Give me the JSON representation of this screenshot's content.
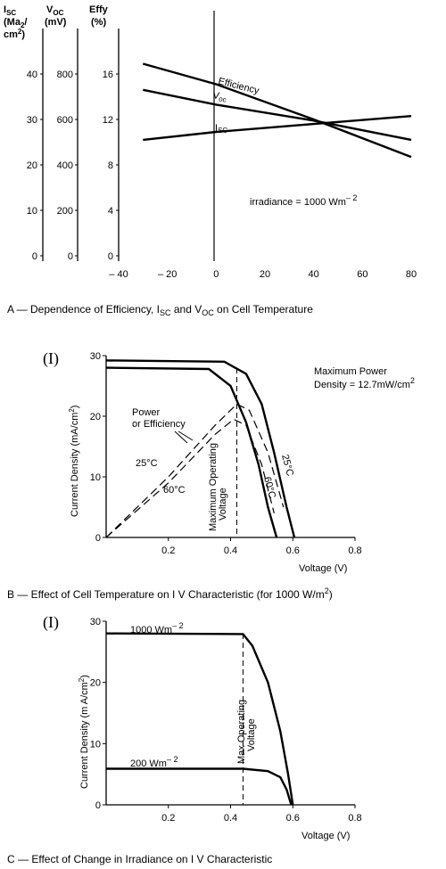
{
  "chart_data": [
    {
      "type": "line",
      "caption": "A — Dependence of Efficiency, I",
      "caption_sub1": "SC",
      "caption_mid": " and V",
      "caption_sub2": "OC",
      "caption_end": " on Cell Temperature",
      "axes_headers": {
        "isc": {
          "main": "I",
          "sub": "SC",
          "l2": "(Ma",
          "l2sub": "2",
          "l2end": "/",
          "l3": "cm",
          "l3sup": "2",
          "l3end": ")"
        },
        "voc": {
          "main": "V",
          "sub": "OC",
          "l2": "(mV)"
        },
        "effy": {
          "main": "Effy",
          "l2": "(%)"
        }
      },
      "isc_ticks": [
        "0",
        "10",
        "20",
        "30",
        "40"
      ],
      "voc_ticks": [
        "0",
        "200",
        "400",
        "600",
        "800"
      ],
      "effy_ticks": [
        "0",
        "4",
        "8",
        "12",
        "16"
      ],
      "x_ticks": [
        "– 40",
        "– 20",
        "0",
        "20",
        "40",
        "60",
        "80"
      ],
      "x_tick_values": [
        -40,
        -20,
        0,
        20,
        40,
        60,
        80
      ],
      "xlim": [
        -40,
        80
      ],
      "ylim_effy": [
        0,
        20
      ],
      "annotation": "irradiance = 1000 Wm",
      "annotation_sup": "– 2",
      "series": [
        {
          "name": "Efficiency",
          "x": [
            -30,
            0,
            40,
            80
          ],
          "y_effy": [
            16.9,
            15.1,
            12.0,
            8.7
          ]
        },
        {
          "name": "V",
          "name_sub": "oc",
          "x": [
            -30,
            0,
            40,
            80
          ],
          "y_effy": [
            14.6,
            13.3,
            11.9,
            10.2
          ]
        },
        {
          "name": "I",
          "name_sub": "SC",
          "x": [
            -30,
            0,
            40,
            80
          ],
          "y_effy": [
            10.2,
            10.9,
            11.6,
            12.3
          ]
        }
      ]
    },
    {
      "type": "line",
      "panel_label": "(I)",
      "caption": "B — Effect of Cell Temperature on I V Characteristic (for 1000 W/m",
      "caption_sup": "2",
      "caption_end": ")",
      "ylabel": "Current Density (mA/cm",
      "ylabel_sup": "2",
      "ylabel_end": ")",
      "xlabel": "Voltage (V)",
      "x_ticks": [
        "0.2",
        "0.4",
        "0.6",
        "0.8"
      ],
      "x_tick_values": [
        0.2,
        0.4,
        0.6,
        0.8
      ],
      "y_ticks": [
        "0",
        "10",
        "20",
        "30"
      ],
      "y_tick_values": [
        0,
        10,
        20,
        30
      ],
      "xlim": [
        0,
        0.8
      ],
      "ylim": [
        0,
        30
      ],
      "note_line1": "Maximum Power",
      "note_line2": "Density = 12.7mW/cm",
      "note_sup": "2",
      "power_label_1": "Power",
      "power_label_2": "or Efficiency",
      "vertical_label_1": "Maximum Operating",
      "vertical_label_2": "Voltage",
      "max_operating_voltage": 0.42,
      "curve_labels": {
        "c25": "25°C",
        "c60": "60°C",
        "p25": "25°C",
        "p60": "60°C"
      },
      "series": [
        {
          "name": "25°C",
          "x": [
            0,
            0.38,
            0.45,
            0.5,
            0.54,
            0.58,
            0.605
          ],
          "y": [
            29.2,
            29.0,
            27.0,
            22.0,
            14.0,
            5.0,
            0
          ]
        },
        {
          "name": "60°C",
          "x": [
            0,
            0.33,
            0.4,
            0.45,
            0.49,
            0.52,
            0.548
          ],
          "y": [
            28.0,
            27.8,
            25.0,
            19.0,
            12.0,
            5.0,
            0
          ]
        },
        {
          "name": "25°C",
          "x": [
            0,
            0.2,
            0.35,
            0.42,
            0.46,
            0.52,
            0.57
          ],
          "y": [
            0,
            10.0,
            18.5,
            22.0,
            21.0,
            14.0,
            5.0
          ]
        },
        {
          "name": "60°C",
          "x": [
            0,
            0.2,
            0.35,
            0.41,
            0.45,
            0.5,
            0.54
          ],
          "y": [
            0,
            9.0,
            17.0,
            19.5,
            18.5,
            12.0,
            4.0
          ]
        }
      ]
    },
    {
      "type": "line",
      "panel_label": "(I)",
      "caption": "C — Effect of Change in Irradiance on I V Characteristic",
      "ylabel": "Current Density (m A/cm",
      "ylabel_sup": "2",
      "ylabel_end": ")",
      "xlabel": "Voltage (V)",
      "x_ticks": [
        "0.2",
        "0.4",
        "0.6",
        "0.8"
      ],
      "x_tick_values": [
        0.2,
        0.4,
        0.6,
        0.8
      ],
      "y_ticks": [
        "0",
        "10",
        "20",
        "30"
      ],
      "y_tick_values": [
        0,
        10,
        20,
        30
      ],
      "xlim": [
        0,
        0.8
      ],
      "ylim": [
        0,
        30
      ],
      "vertical_label_1": "Max Operating",
      "vertical_label_2": "Voltage",
      "max_operating_voltage": 0.44,
      "series": [
        {
          "name": "1000 Wm",
          "name_sup": "– 2",
          "x": [
            0,
            0.44,
            0.47,
            0.52,
            0.56,
            0.585,
            0.6
          ],
          "y": [
            28.0,
            27.9,
            26.0,
            20.0,
            12.0,
            5.0,
            0
          ]
        },
        {
          "name": "200 Wm",
          "name_sup": "– 2",
          "x": [
            0,
            0.44,
            0.52,
            0.56,
            0.58,
            0.595
          ],
          "y": [
            5.9,
            5.9,
            5.5,
            4.5,
            2.5,
            0
          ]
        }
      ]
    }
  ]
}
